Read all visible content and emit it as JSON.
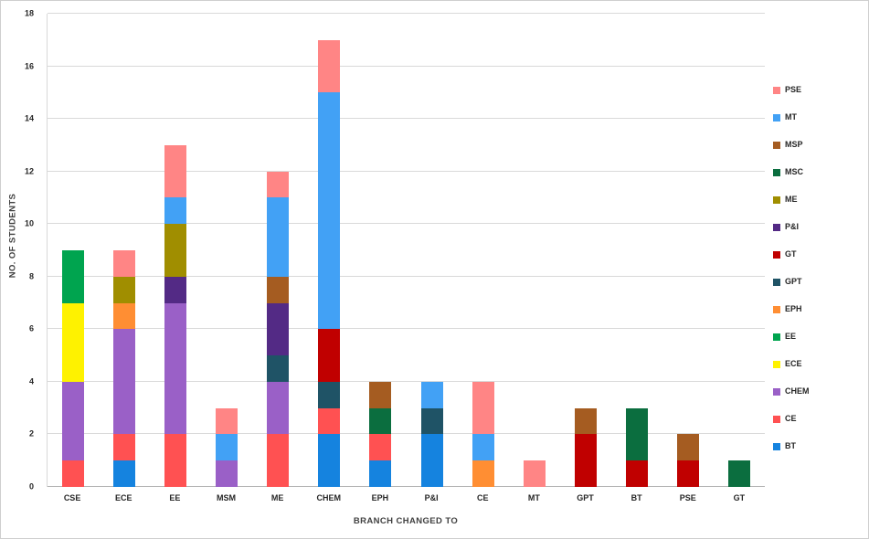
{
  "chart_data": {
    "type": "bar",
    "subtype": "stacked",
    "title": "",
    "xlabel": "BRANCH CHANGED TO",
    "ylabel": "NO. OF STUDENTS",
    "ylim": [
      0,
      18
    ],
    "yticks": [
      "0",
      "2",
      "4",
      "6",
      "8",
      "10",
      "12",
      "14",
      "16",
      "18"
    ],
    "grid": "horizontal",
    "legend_position": "right",
    "categories": [
      "CSE",
      "ECE",
      "EE",
      "MSM",
      "ME",
      "CHEM",
      "EPH",
      "P&I",
      "CE",
      "MT",
      "GPT",
      "BT",
      "PSE",
      "GT"
    ],
    "series": [
      {
        "name": "BT",
        "color": "#1583df",
        "values": [
          0,
          1,
          0,
          0,
          0,
          2,
          1,
          2,
          0,
          0,
          0,
          0,
          0,
          0
        ]
      },
      {
        "name": "CE",
        "color": "#ff5152",
        "values": [
          1,
          1,
          2,
          0,
          2,
          1,
          1,
          0,
          0,
          0,
          0,
          0,
          0,
          0
        ]
      },
      {
        "name": "CHEM",
        "color": "#9a60c7",
        "values": [
          3,
          4,
          5,
          1,
          2,
          0,
          0,
          0,
          0,
          0,
          0,
          0,
          0,
          0
        ]
      },
      {
        "name": "ECE",
        "color": "#fef200",
        "values": [
          3,
          0,
          0,
          0,
          0,
          0,
          0,
          0,
          0,
          0,
          0,
          0,
          0,
          0
        ]
      },
      {
        "name": "EE",
        "color": "#00a44f",
        "values": [
          2,
          0,
          0,
          0,
          0,
          0,
          0,
          0,
          0,
          0,
          0,
          0,
          0,
          0
        ]
      },
      {
        "name": "EPH",
        "color": "#ff8e33",
        "values": [
          0,
          1,
          0,
          0,
          0,
          0,
          0,
          0,
          1,
          0,
          0,
          0,
          0,
          0
        ]
      },
      {
        "name": "GPT",
        "color": "#1f5366",
        "values": [
          0,
          0,
          0,
          0,
          1,
          1,
          0,
          1,
          0,
          0,
          0,
          0,
          0,
          0
        ]
      },
      {
        "name": "GT",
        "color": "#c00000",
        "values": [
          0,
          0,
          0,
          0,
          0,
          2,
          0,
          0,
          0,
          0,
          2,
          1,
          1,
          0
        ]
      },
      {
        "name": "P&I",
        "color": "#532a85",
        "values": [
          0,
          0,
          1,
          0,
          2,
          0,
          0,
          0,
          0,
          0,
          0,
          0,
          0,
          0
        ]
      },
      {
        "name": "ME",
        "color": "#a08e00",
        "values": [
          0,
          1,
          2,
          0,
          0,
          0,
          0,
          0,
          0,
          0,
          0,
          0,
          0,
          0
        ]
      },
      {
        "name": "MSC",
        "color": "#0b6e3f",
        "values": [
          0,
          0,
          0,
          0,
          0,
          0,
          1,
          0,
          0,
          0,
          0,
          2,
          0,
          1
        ]
      },
      {
        "name": "MSP",
        "color": "#a55c21",
        "values": [
          0,
          0,
          0,
          0,
          1,
          0,
          1,
          0,
          0,
          0,
          1,
          0,
          1,
          0
        ]
      },
      {
        "name": "MT",
        "color": "#42a1f5",
        "values": [
          0,
          0,
          1,
          1,
          3,
          9,
          0,
          1,
          1,
          0,
          0,
          0,
          0,
          0
        ]
      },
      {
        "name": "PSE",
        "color": "#ff8585",
        "values": [
          0,
          1,
          2,
          1,
          1,
          2,
          0,
          0,
          2,
          1,
          0,
          0,
          0,
          0
        ]
      }
    ],
    "legend": [
      "PSE",
      "MT",
      "MSP",
      "MSC",
      "ME",
      "P&I",
      "GT",
      "GPT",
      "EPH",
      "EE",
      "ECE",
      "CHEM",
      "CE",
      "BT"
    ]
  }
}
